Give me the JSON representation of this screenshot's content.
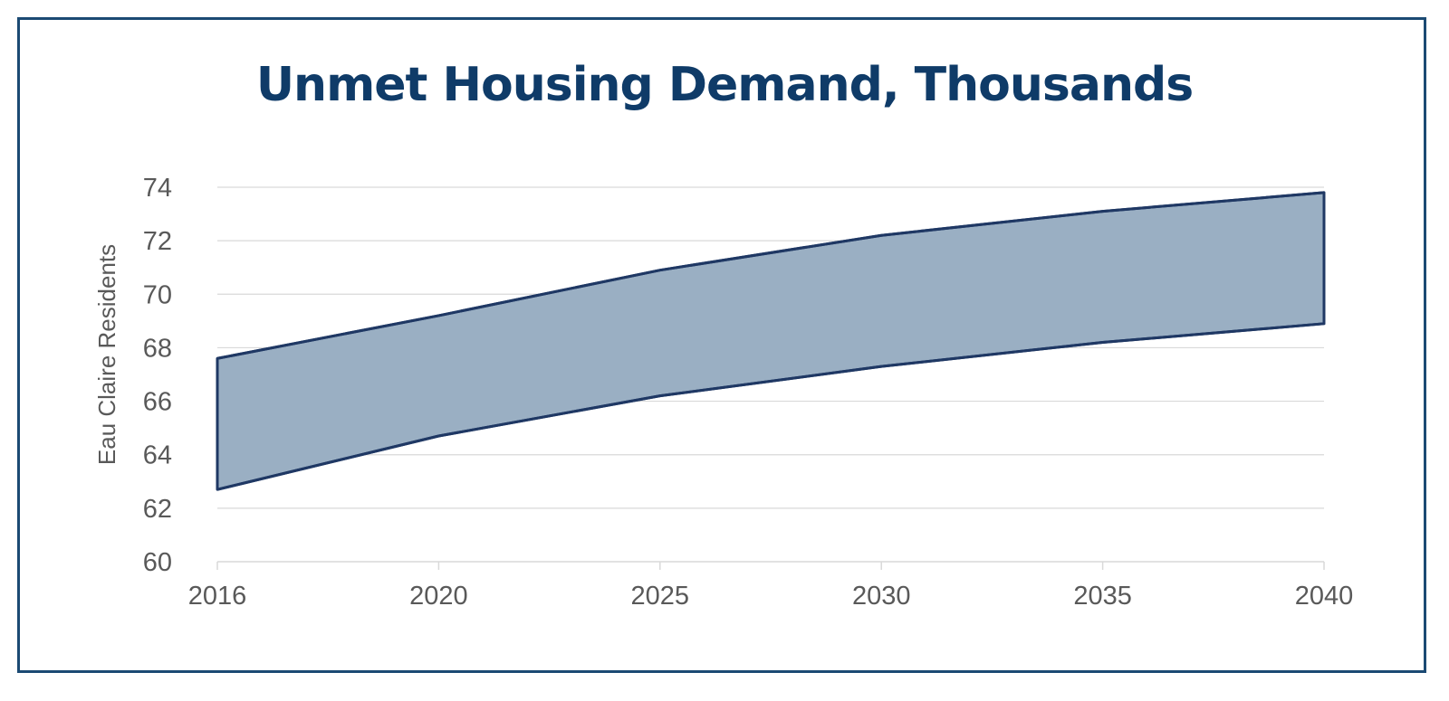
{
  "chart_data": {
    "type": "area",
    "title": "Unmet Housing Demand, Thousands",
    "xlabel": "",
    "ylabel": "Eau Claire Residents",
    "x": [
      "2016",
      "2020",
      "2025",
      "2030",
      "2035",
      "2040"
    ],
    "series": [
      {
        "values": [
          67.6,
          69.2,
          70.9,
          72.2,
          73.1,
          73.8
        ]
      },
      {
        "values": [
          62.7,
          64.7,
          66.2,
          67.3,
          68.2,
          68.9
        ]
      }
    ],
    "ylim": [
      60,
      74
    ],
    "yticks": [
      60,
      62,
      64,
      66,
      68,
      70,
      72,
      74
    ],
    "grid": true,
    "colors": {
      "fill": "#9aafc3",
      "line": "#1f3864",
      "grid": "#d9d9d9",
      "axis": "#d9d9d9",
      "title": "#0f3b68",
      "frame": "#1b4a73"
    }
  }
}
